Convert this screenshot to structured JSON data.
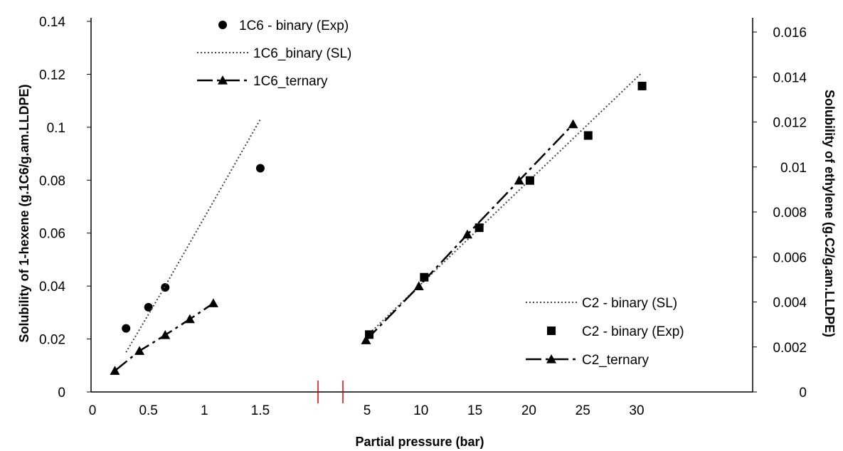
{
  "chart_data": {
    "type": "scatter",
    "xlabel": "Partial pressure (bar)",
    "ylabel_left": "Solubility of 1-hexene (g.1C6/g.am.LLDPE)",
    "ylabel_right": "Solubility of ethylene (g.C2/g.am.LLDPE)",
    "x_axis_break": true,
    "x_ticks_left": [
      "0",
      "0.5",
      "1",
      "1.5"
    ],
    "x_ticks_right": [
      "5",
      "10",
      "15",
      "20",
      "25",
      "30"
    ],
    "y_left_ticks": [
      "0",
      "0.02",
      "0.04",
      "0.06",
      "0.08",
      "0.1",
      "0.12",
      "0.14"
    ],
    "y_right_ticks": [
      "0",
      "0.002",
      "0.004",
      "0.006",
      "0.008",
      "0.01",
      "0.012",
      "0.014",
      "0.016"
    ],
    "ylim_left": [
      0,
      0.14
    ],
    "ylim_right": [
      0,
      0.016
    ],
    "series": [
      {
        "name": "1C6 - binary (Exp)",
        "axis": "left",
        "style": "circle",
        "x": [
          0.3,
          0.5,
          0.65,
          1.5
        ],
        "y": [
          0.024,
          0.032,
          0.0395,
          0.0845
        ]
      },
      {
        "name": "1C6_binary (SL)",
        "axis": "left",
        "style": "dotted",
        "x": [
          0.3,
          0.65,
          1.5
        ],
        "y": [
          0.015,
          0.04,
          0.103
        ]
      },
      {
        "name": "1C6_ternary",
        "axis": "left",
        "style": "dashdot-triangle",
        "x": [
          0.2,
          0.42,
          0.65,
          0.87,
          1.08
        ],
        "y": [
          0.008,
          0.0155,
          0.0215,
          0.0275,
          0.0335
        ]
      },
      {
        "name": "C2 - binary (SL)",
        "axis": "right",
        "style": "dotted",
        "x": [
          5,
          30.5
        ],
        "y": [
          0.0025,
          0.0142
        ]
      },
      {
        "name": "C2 - binary (Exp)",
        "axis": "right",
        "style": "square",
        "x": [
          5.2,
          10.3,
          15.4,
          20.1,
          25.5,
          30.5
        ],
        "y": [
          0.00255,
          0.0051,
          0.0073,
          0.0094,
          0.0114,
          0.0136
        ]
      },
      {
        "name": "C2_ternary",
        "axis": "right",
        "style": "dashdot-triangle",
        "x": [
          4.9,
          9.8,
          14.3,
          19.1,
          24.1
        ],
        "y": [
          0.0023,
          0.0047,
          0.007,
          0.0094,
          0.0119
        ]
      }
    ]
  }
}
